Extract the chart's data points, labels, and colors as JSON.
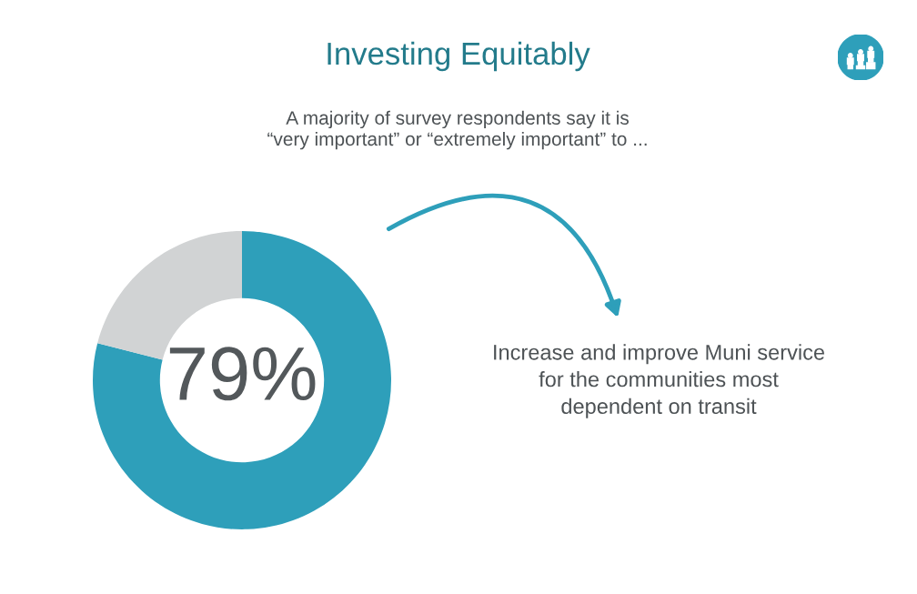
{
  "chart_data": {
    "type": "donut",
    "title": "Investing Equitably",
    "subtitle": "A majority of survey respondents say it is\n“very important” or “extremely important” to ...",
    "categories": [
      null,
      null
    ],
    "values": [
      79,
      21
    ],
    "colors": [
      "#2e9fba",
      "#d1d3d4"
    ],
    "value_labels": [
      "79%",
      null
    ],
    "annotations": [
      "Increase and improve Muni service\nfor the communities most\ndependent on transit"
    ]
  }
}
